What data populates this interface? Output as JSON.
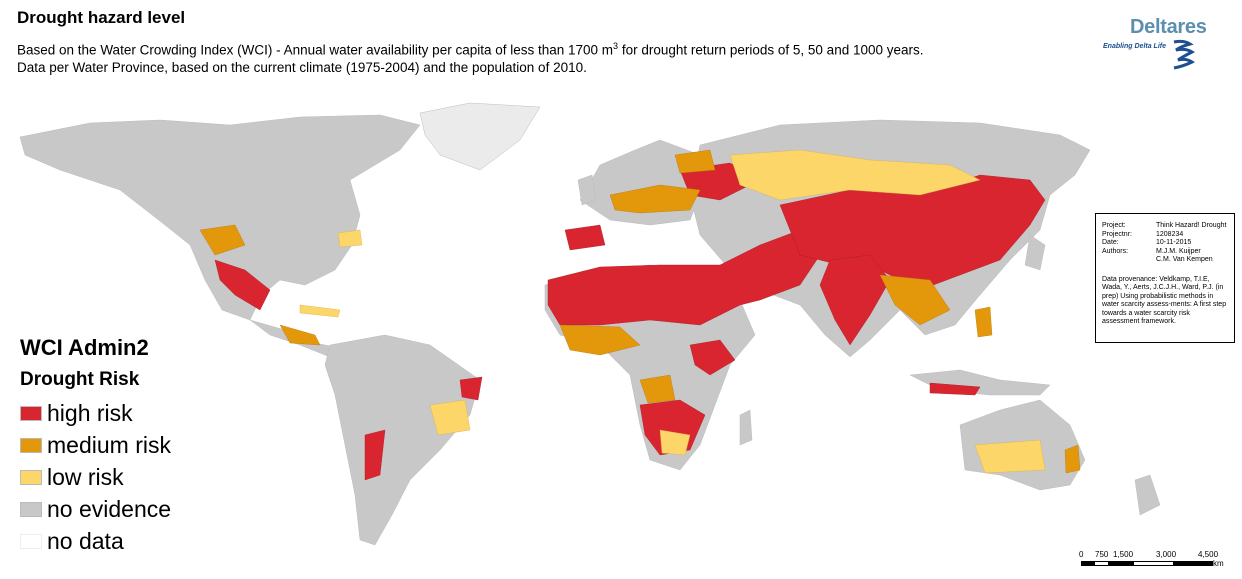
{
  "title": "Drought hazard level",
  "subtitle_line1_pre": "Based on the Water Crowding Index (WCI) - Annual water availability per capita of less than 1700 m",
  "subtitle_line1_sup": "3",
  "subtitle_line1_post": " for drought return periods of 5, 50 and 1000 years.",
  "subtitle_line2": "Data per Water Province, based on the current climate (1975-2004)  and the population of 2010.",
  "logo": {
    "name": "Deltares",
    "tagline": "Enabling Delta Life"
  },
  "info_box": {
    "rows": [
      {
        "key": "Project:",
        "value": "Think Hazard! Drought"
      },
      {
        "key": "Projectnr:",
        "value": "1208234"
      },
      {
        "key": "Date:",
        "value": "10-11-2015"
      },
      {
        "key": "Authors:",
        "value": "M.J.M. Kuijper"
      },
      {
        "key": "",
        "value": "C.M. Van Kempen"
      }
    ],
    "provenance": "Data provenance: Veldkamp, T.I.E, Wada, Y., Aerts, J.C.J.H., Ward, P.J. (in prep) Using probabilistic methods in water scarcity assess-ments: A first step towards a water scarcity risk assessment framework."
  },
  "legend": {
    "title": "WCI Admin2",
    "subtitle": "Drought Risk",
    "items": [
      {
        "label": "high risk",
        "color": "#d9252f"
      },
      {
        "label": "medium risk",
        "color": "#e3980c"
      },
      {
        "label": "low risk",
        "color": "#fdd66a"
      },
      {
        "label": "no evidence",
        "color": "#c8c8c8"
      },
      {
        "label": "no data",
        "color": "#ffffff"
      }
    ]
  },
  "scale_bar": {
    "ticks": [
      "0",
      "750",
      "1,500",
      "3,000",
      "4,500"
    ],
    "unit": "km"
  }
}
